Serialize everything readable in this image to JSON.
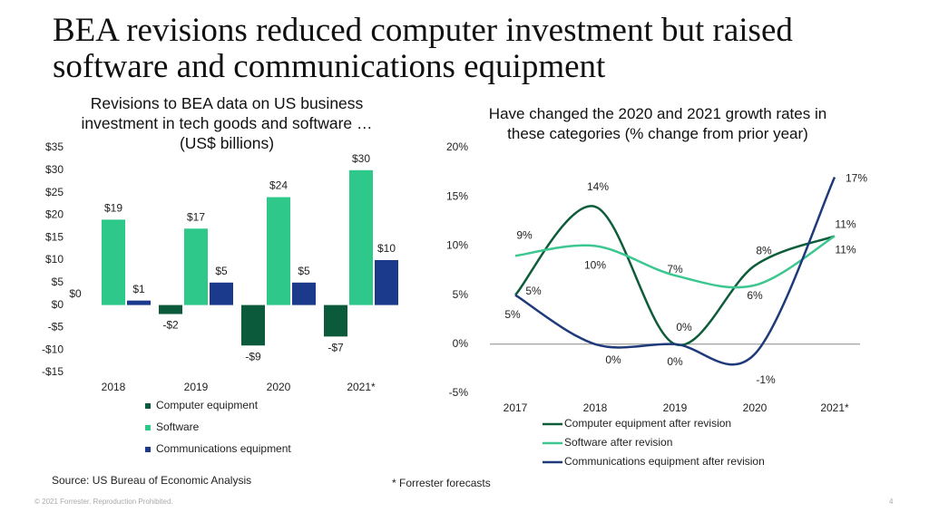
{
  "title": "BEA revisions reduced computer investment but raised software and communications equipment",
  "chart_data": [
    {
      "type": "bar",
      "title": "Revisions to BEA data on US business investment in tech goods and software … (US$ billions)",
      "categories": [
        "2018",
        "2019",
        "2020",
        "2021*"
      ],
      "series": [
        {
          "name": "Computer equipment",
          "color": "#0b5a3c",
          "values": [
            0,
            -2,
            -9,
            -7
          ],
          "value_labels": [
            "$0",
            "-$2",
            "-$9",
            "-$7"
          ]
        },
        {
          "name": "Software",
          "color": "#2ec98a",
          "values": [
            19,
            17,
            24,
            30
          ],
          "value_labels": [
            "$19",
            "$17",
            "$24",
            "$30"
          ]
        },
        {
          "name": "Communications equipment",
          "color": "#1c3a8c",
          "values": [
            1,
            5,
            5,
            10
          ],
          "value_labels": [
            "$1",
            "$5",
            "$5",
            "$10"
          ]
        }
      ],
      "ylim": [
        -15,
        35
      ],
      "yticks": [
        {
          "value": 35,
          "label": "$35"
        },
        {
          "value": 30,
          "label": "$30"
        },
        {
          "value": 25,
          "label": "$25"
        },
        {
          "value": 20,
          "label": "$20"
        },
        {
          "value": 15,
          "label": "$15"
        },
        {
          "value": 10,
          "label": "$10"
        },
        {
          "value": 5,
          "label": "$5"
        },
        {
          "value": 0,
          "label": "$0"
        },
        {
          "value": -5,
          "label": "-$5"
        },
        {
          "value": -10,
          "label": "-$10"
        },
        {
          "value": -15,
          "label": "-$15"
        }
      ],
      "grid": false
    },
    {
      "type": "line",
      "title": "Have changed the 2020 and 2021 growth rates in these categories (% change from prior year)",
      "categories": [
        "2017",
        "2018",
        "2019",
        "2020",
        "2021*"
      ],
      "series": [
        {
          "name": "Computer  equipment after revision",
          "color": "#0d5c3a",
          "values": [
            5,
            14,
            0,
            8,
            11
          ],
          "value_labels": [
            "5%",
            "14%",
            "0%",
            "8%",
            "11%"
          ]
        },
        {
          "name": "Software after revision",
          "color": "#3cc791",
          "values": [
            9,
            10,
            7,
            6,
            11
          ],
          "value_labels": [
            "9%",
            "10%",
            "7%",
            "6%",
            "11%"
          ]
        },
        {
          "name": "Communications equipment after revision",
          "color": "#1f3a7a",
          "values": [
            5,
            0,
            0,
            -1,
            17
          ],
          "value_labels": [
            "5%",
            "0%",
            "0%",
            "-1%",
            "17%"
          ]
        }
      ],
      "ylim": [
        -5,
        20
      ],
      "yticks": [
        {
          "value": 20,
          "label": "20%"
        },
        {
          "value": 15,
          "label": "15%"
        },
        {
          "value": 10,
          "label": "10%"
        },
        {
          "value": 5,
          "label": "5%"
        },
        {
          "value": 0,
          "label": "0%"
        },
        {
          "value": -5,
          "label": "-5%"
        }
      ],
      "smooth": true
    }
  ],
  "source": "Source: US Bureau of Economic Analysis",
  "footnote": "* Forrester forecasts",
  "copyright": "© 2021 Forrester. Reproduction Prohibited.",
  "page_number": "4"
}
